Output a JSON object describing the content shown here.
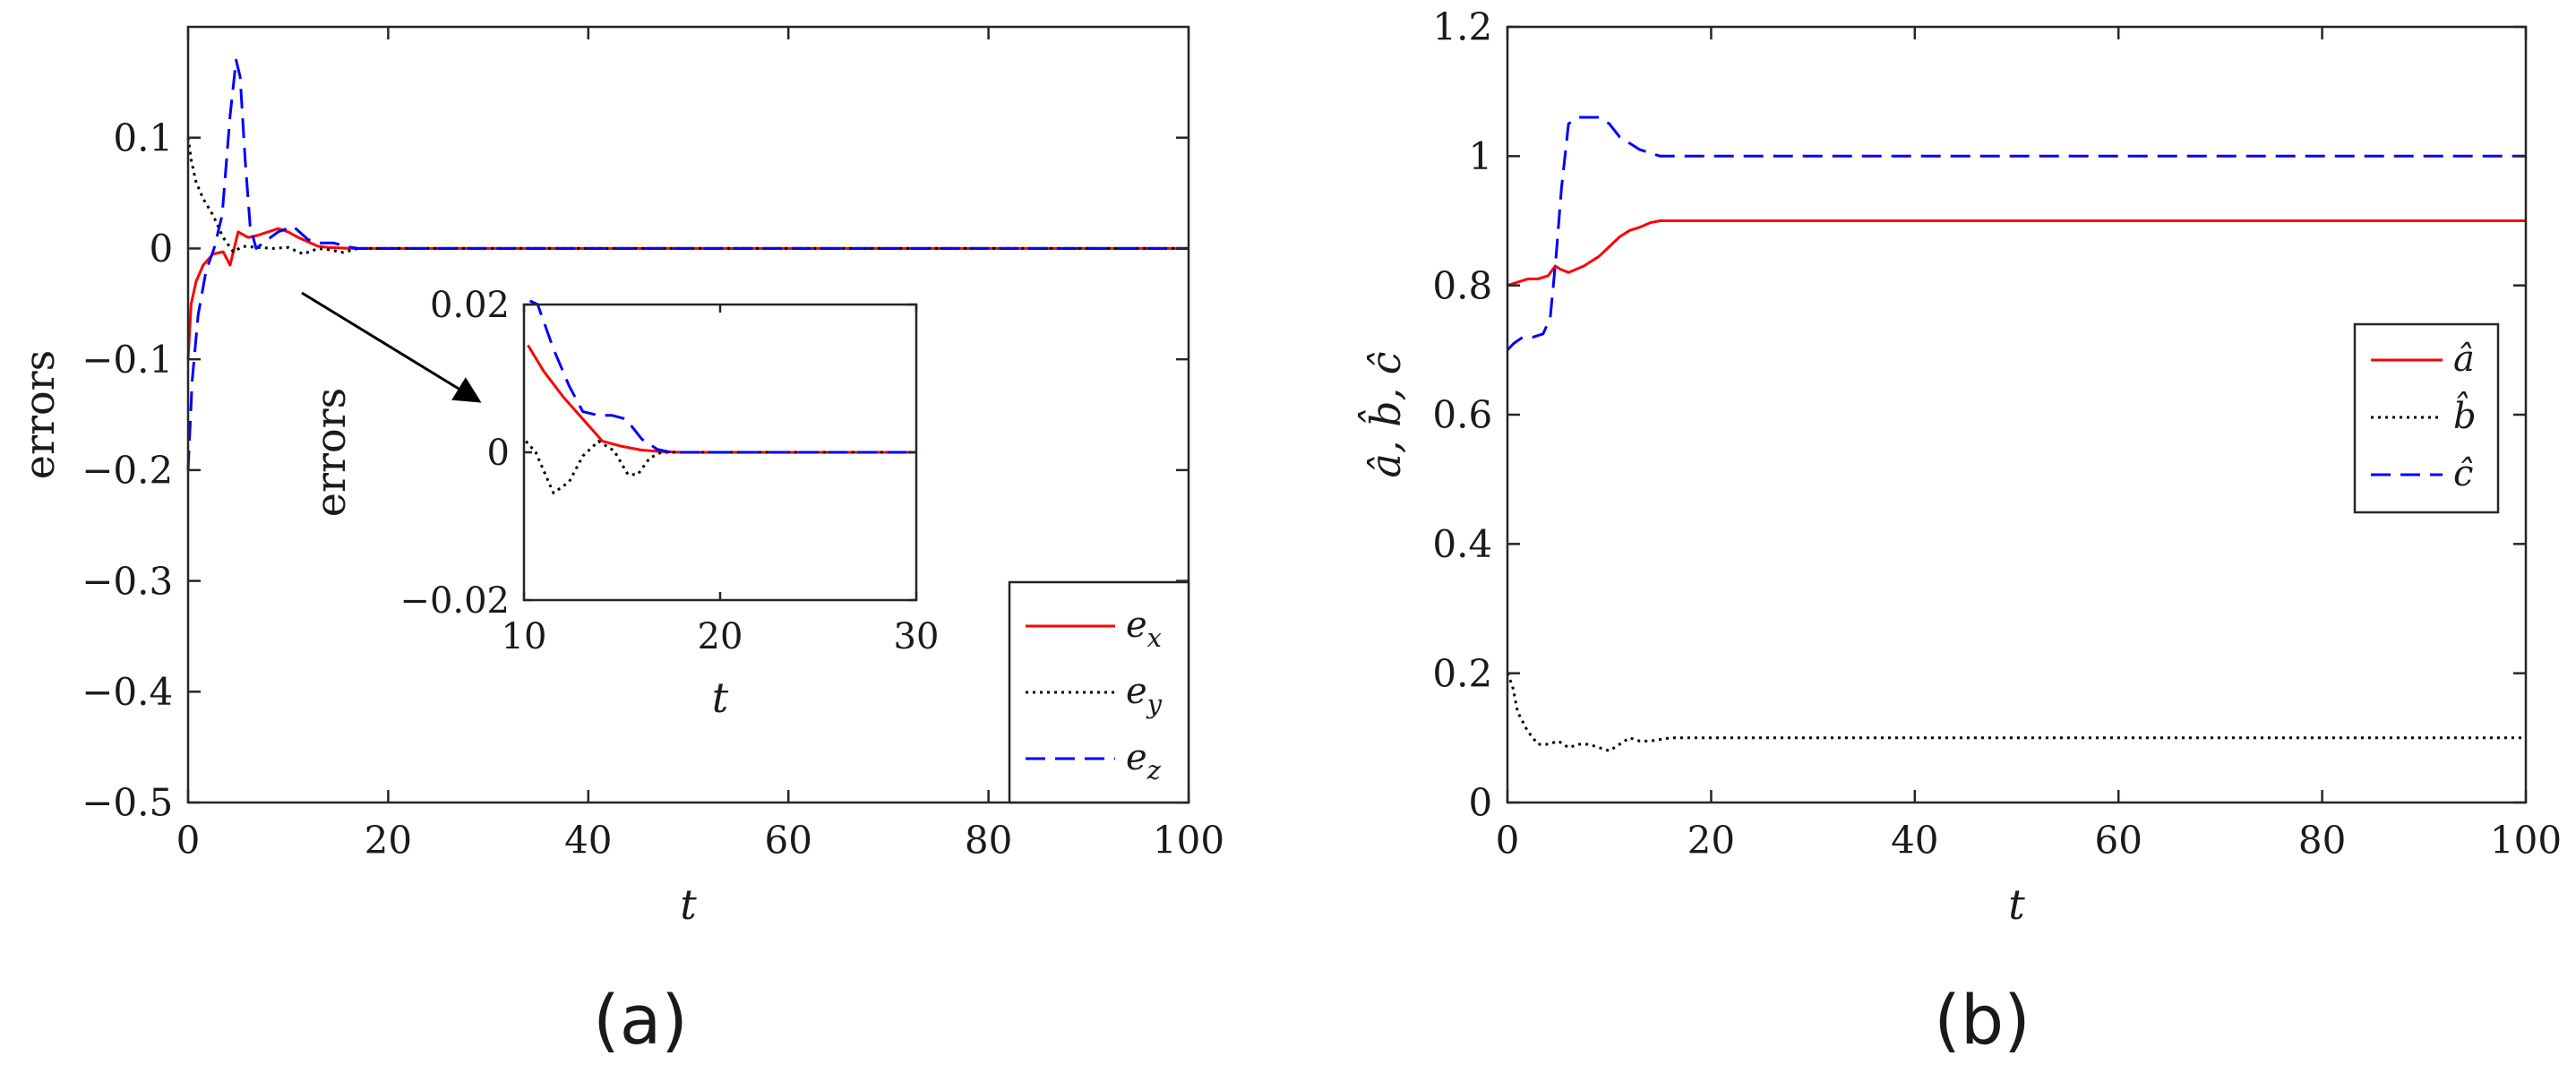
{
  "figure": {
    "sub_labels": [
      "(a)",
      "(b)"
    ]
  },
  "chart_data": [
    {
      "type": "line",
      "panel": "(a)",
      "xlabel": "t",
      "ylabel": "errors",
      "xlim": [
        0,
        100
      ],
      "ylim": [
        -0.5,
        0.2
      ],
      "xticks": [
        0,
        20,
        40,
        60,
        80,
        100
      ],
      "xtick_labels": [
        "0",
        "20",
        "40",
        "60",
        "80",
        "100"
      ],
      "yticks": [
        0.1,
        0,
        -0.1,
        -0.2,
        -0.3,
        -0.4,
        -0.5
      ],
      "ytick_labels": [
        "0.1",
        "0",
        "−0.1",
        "−0.2",
        "−0.3",
        "−0.4",
        "−0.5"
      ],
      "legend": {
        "position": "bottom-right",
        "entries": [
          "e_x",
          "e_y",
          "e_z"
        ]
      },
      "series": [
        {
          "name": "e_x",
          "color": "#ff0000",
          "style": "solid",
          "x": [
            0,
            0.3,
            0.8,
            1.5,
            2.5,
            3.5,
            4.2,
            5.0,
            6.0,
            7.0,
            8.0,
            9.0,
            10,
            11,
            12,
            13,
            14,
            15,
            16,
            17,
            20,
            30,
            100
          ],
          "y": [
            -0.1,
            -0.05,
            -0.03,
            -0.015,
            -0.005,
            -0.003,
            -0.015,
            0.015,
            0.01,
            0.012,
            0.015,
            0.018,
            0.015,
            0.01,
            0.006,
            0.002,
            0.001,
            0.0005,
            0.0002,
            0,
            0,
            0,
            0
          ]
        },
        {
          "name": "e_y",
          "color": "#000000",
          "style": "dotted",
          "x": [
            0,
            0.3,
            0.8,
            1.5,
            2.5,
            3.5,
            4.5,
            5.5,
            7,
            8.5,
            10,
            11.5,
            13,
            14,
            15.5,
            17,
            20,
            100
          ],
          "y": [
            0.1,
            0.08,
            0.06,
            0.045,
            0.03,
            0.01,
            -0.003,
            0.002,
            0.001,
            0.0,
            0.001,
            -0.005,
            0.0,
            -0.001,
            -0.0035,
            0,
            0,
            0
          ]
        },
        {
          "name": "e_z",
          "color": "#0000ff",
          "style": "dashed",
          "x": [
            0,
            0.4,
            1,
            1.8,
            2.6,
            3.4,
            4.2,
            4.8,
            5.2,
            5.7,
            6.2,
            6.8,
            7.5,
            9,
            10.5,
            12,
            13,
            14.5,
            16,
            17,
            20,
            100
          ],
          "y": [
            -0.2,
            -0.12,
            -0.06,
            -0.02,
            0,
            0.03,
            0.12,
            0.17,
            0.155,
            0.08,
            0.02,
            0.0,
            0.005,
            0.015,
            0.02,
            0.008,
            0.005,
            0.005,
            0.0015,
            0,
            0,
            0
          ]
        }
      ]
    },
    {
      "type": "line",
      "panel": "(a) inset",
      "xlabel": "t",
      "ylabel": "errors",
      "xlim": [
        10,
        30
      ],
      "ylim": [
        -0.02,
        0.02
      ],
      "xticks": [
        10,
        20,
        30
      ],
      "xtick_labels": [
        "10",
        "20",
        "30"
      ],
      "yticks": [
        0.02,
        0,
        -0.02
      ],
      "ytick_labels": [
        "0.02",
        "0",
        "−0.02"
      ],
      "series": [
        {
          "name": "e_x",
          "color": "#ff0000",
          "style": "solid",
          "x": [
            10.2,
            11,
            12,
            13,
            14,
            15,
            16,
            17,
            18,
            30
          ],
          "y": [
            0.0145,
            0.011,
            0.0075,
            0.0045,
            0.0015,
            0.0008,
            0.0003,
            0.0001,
            0,
            0
          ]
        },
        {
          "name": "e_y",
          "color": "#000000",
          "style": "dotted",
          "x": [
            10.1,
            10.6,
            11.5,
            12.3,
            13,
            13.8,
            14.6,
            15.3,
            15.8,
            16.4,
            17,
            30
          ],
          "y": [
            0.0015,
            0,
            -0.0055,
            -0.004,
            -0.0005,
            0.0015,
            0.0002,
            -0.003,
            -0.003,
            -0.0008,
            0,
            0
          ]
        },
        {
          "name": "e_z",
          "color": "#0000ff",
          "style": "dashed",
          "x": [
            10.3,
            10.7,
            11.5,
            12.3,
            13,
            13.8,
            14.5,
            15.2,
            16,
            16.8,
            17.5,
            30
          ],
          "y": [
            0.0205,
            0.02,
            0.014,
            0.009,
            0.0055,
            0.005,
            0.005,
            0.0045,
            0.0018,
            0.0004,
            0,
            0
          ]
        }
      ]
    },
    {
      "type": "line",
      "panel": "(b)",
      "xlabel": "t",
      "ylabel": "â, b̂, ĉ",
      "xlim": [
        0,
        100
      ],
      "ylim": [
        0,
        1.2
      ],
      "xticks": [
        0,
        20,
        40,
        60,
        80,
        100
      ],
      "xtick_labels": [
        "0",
        "20",
        "40",
        "60",
        "80",
        "100"
      ],
      "yticks": [
        0,
        0.2,
        0.4,
        0.6,
        0.8,
        1,
        1.2
      ],
      "ytick_labels": [
        "0",
        "0.2",
        "0.4",
        "0.6",
        "0.8",
        "1",
        "1.2"
      ],
      "legend": {
        "position": "right",
        "entries": [
          "â",
          "b̂",
          "ĉ"
        ]
      },
      "series": [
        {
          "name": "â",
          "color": "#ff0000",
          "style": "solid",
          "x": [
            0,
            1,
            2,
            3,
            4,
            4.7,
            5.2,
            6,
            7.5,
            9,
            10,
            11,
            12,
            13,
            14,
            15,
            20,
            100
          ],
          "y": [
            0.8,
            0.805,
            0.81,
            0.81,
            0.815,
            0.83,
            0.825,
            0.82,
            0.83,
            0.845,
            0.86,
            0.875,
            0.885,
            0.89,
            0.897,
            0.9,
            0.9,
            0.9
          ]
        },
        {
          "name": "b̂",
          "color": "#000000",
          "style": "dotted",
          "x": [
            0,
            0.5,
            1,
            2,
            3,
            4,
            5,
            6,
            7,
            8,
            9,
            10,
            11,
            12,
            13,
            14,
            16,
            18,
            20,
            100
          ],
          "y": [
            0.2,
            0.18,
            0.14,
            0.11,
            0.09,
            0.09,
            0.095,
            0.085,
            0.09,
            0.09,
            0.085,
            0.08,
            0.09,
            0.1,
            0.095,
            0.095,
            0.1,
            0.1,
            0.1,
            0.1
          ]
        },
        {
          "name": "ĉ",
          "color": "#0000ff",
          "style": "dashed",
          "x": [
            0,
            0.6,
            1.5,
            2.5,
            3.5,
            4.2,
            4.8,
            5.3,
            6,
            7,
            8,
            9,
            10,
            11,
            12,
            13,
            15,
            17,
            20,
            100
          ],
          "y": [
            0.7,
            0.71,
            0.72,
            0.72,
            0.725,
            0.75,
            0.85,
            0.95,
            1.05,
            1.06,
            1.06,
            1.06,
            1.05,
            1.03,
            1.02,
            1.01,
            1.0,
            1.0,
            1.0,
            1.0
          ]
        }
      ]
    }
  ]
}
